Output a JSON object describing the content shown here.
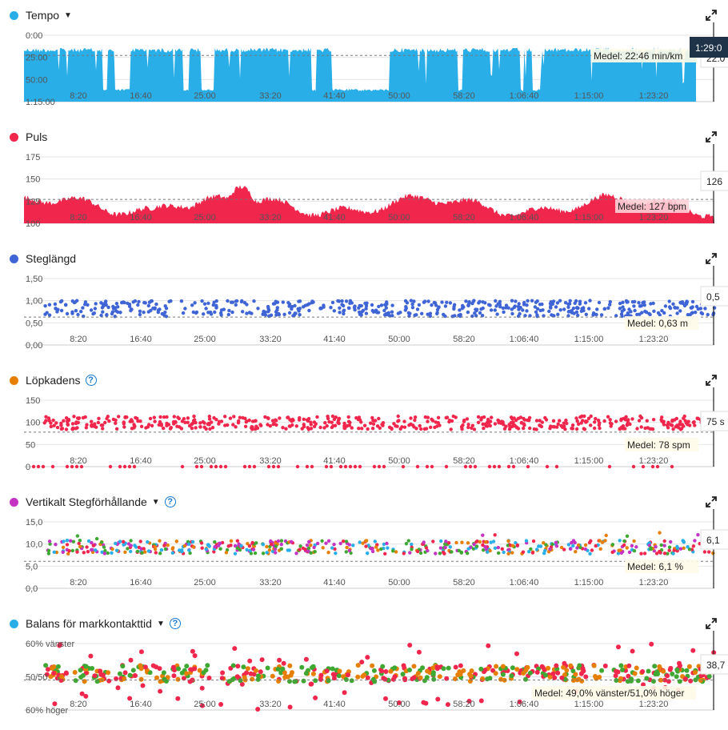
{
  "x_ticks": [
    "8:20",
    "16:40",
    "25:00",
    "33:20",
    "41:40",
    "50:00",
    "58:20",
    "1:06:40",
    "1:15:00",
    "1:23:20"
  ],
  "panels": [
    {
      "id": "tempo",
      "title": "Tempo",
      "dot_color": "#29aee8",
      "has_caret": true,
      "has_help": false,
      "y_ticks": [
        "0:00",
        "25:00",
        "50:00",
        "1:15:00"
      ],
      "avg_label": "Medel: 22:46 min/km",
      "right_value": "22:0",
      "cursor_label": "1:29:0",
      "chart_data": {
        "type": "area",
        "ylabel": "min/km",
        "ylim": [
          "0:00",
          "1:15:00"
        ],
        "y_inverted": true,
        "average": "22:46",
        "color": "#29aee8"
      }
    },
    {
      "id": "puls",
      "title": "Puls",
      "dot_color": "#f0264d",
      "has_caret": false,
      "has_help": false,
      "y_ticks": [
        "175",
        "150",
        "125",
        "100"
      ],
      "avg_label": "Medel: 127 bpm",
      "right_value": "126",
      "chart_data": {
        "type": "area",
        "ylim": [
          100,
          175
        ],
        "average": 127,
        "color": "#f0264d"
      }
    },
    {
      "id": "steglangd",
      "title": "Steglängd",
      "dot_color": "#3f64d6",
      "has_caret": false,
      "has_help": false,
      "y_ticks": [
        "1,50",
        "1,00",
        "0,50",
        "0,00"
      ],
      "avg_label": "Medel: 0,63 m",
      "right_value": "0,5",
      "chart_data": {
        "type": "scatter",
        "ylim": [
          0,
          1.5
        ],
        "average": 0.63,
        "color": "#3f64d6"
      }
    },
    {
      "id": "lopkadens",
      "title": "Löpkadens",
      "dot_color": "#e67e00",
      "has_caret": false,
      "has_help": true,
      "y_ticks": [
        "150",
        "100",
        "50",
        "0"
      ],
      "avg_label": "Medel: 78 spm",
      "right_value": "75 s",
      "chart_data": {
        "type": "scatter",
        "ylim": [
          0,
          150
        ],
        "average": 78,
        "color": "#f0264d"
      }
    },
    {
      "id": "vertikalt",
      "title": "Vertikalt Stegförhållande",
      "dot_color": "#c433c4",
      "has_caret": true,
      "has_help": true,
      "y_ticks": [
        "15,0",
        "10,0",
        "5,0",
        "0,0"
      ],
      "avg_label": "Medel: 6,1 %",
      "right_value": "6,1",
      "chart_data": {
        "type": "scatter",
        "ylim": [
          0,
          15
        ],
        "average": 6.1,
        "colors": [
          "#c433c4",
          "#29aee8",
          "#3fa832",
          "#e67e00",
          "#f0264d"
        ]
      }
    },
    {
      "id": "balans",
      "title": "Balans för markkontakttid",
      "dot_color": "#29aee8",
      "has_caret": true,
      "has_help": true,
      "y_ticks": [
        "60% vänster",
        "50/50",
        "60% höger"
      ],
      "avg_label": "Medel: 49,0% vänster/51,0% höger",
      "right_value": "38,7",
      "chart_data": {
        "type": "scatter",
        "ylim": [
          "60% vänster",
          "60% höger"
        ],
        "average": "49,0% vänster/51,0% höger",
        "colors": [
          "#e67e00",
          "#3fa832",
          "#f0264d"
        ]
      }
    }
  ]
}
